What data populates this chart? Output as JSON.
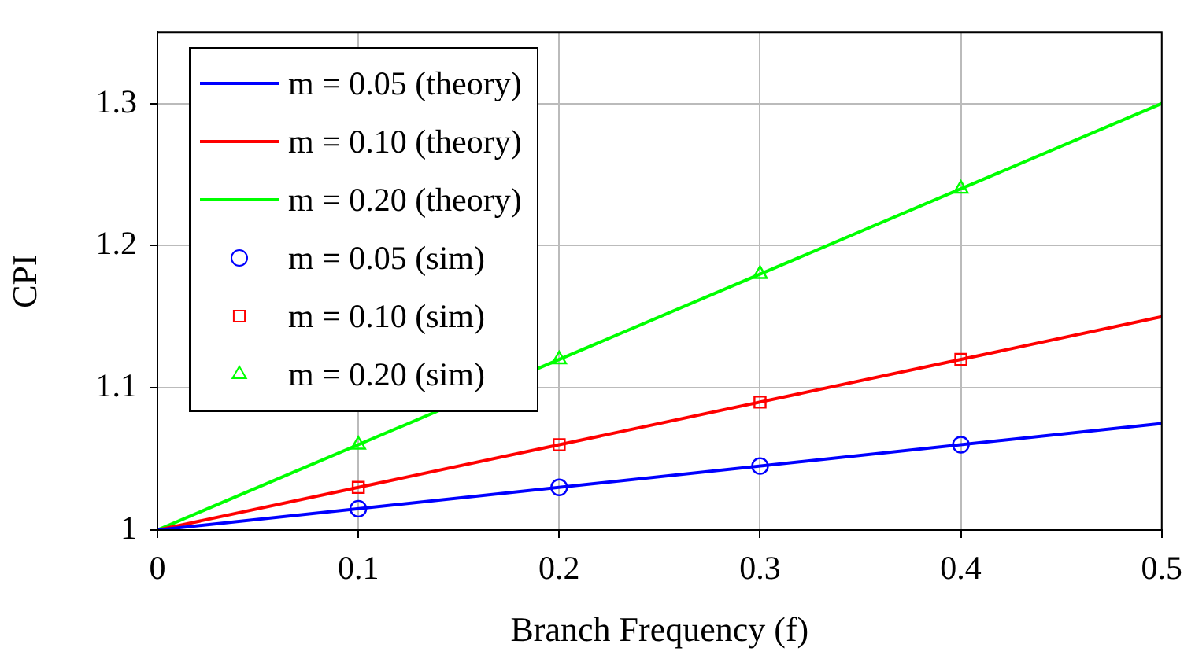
{
  "chart_data": {
    "type": "line",
    "xlabel": "Branch Frequency (f)",
    "ylabel": "CPI",
    "xlim": [
      0,
      0.5
    ],
    "ylim": [
      1,
      1.35
    ],
    "xticks": [
      0,
      0.1,
      0.2,
      0.3,
      0.4,
      0.5
    ],
    "yticks": [
      1,
      1.1,
      1.2,
      1.3
    ],
    "grid": true,
    "legend": "top left",
    "series": [
      {
        "name": "m = 0.05 (theory)",
        "color": "#0000ff",
        "x": [
          0,
          0.5
        ],
        "values": [
          1,
          1.075
        ],
        "marker": "none"
      },
      {
        "name": "m = 0.10 (theory)",
        "color": "#ff0000",
        "x": [
          0,
          0.5
        ],
        "values": [
          1,
          1.15
        ],
        "marker": "none"
      },
      {
        "name": "m = 0.20 (theory)",
        "color": "#00ff00",
        "x": [
          0,
          0.5
        ],
        "values": [
          1,
          1.3
        ],
        "marker": "none"
      },
      {
        "name": "m = 0.05 (sim)",
        "type": "scatter",
        "color": "#0000ff",
        "x": [
          0.1,
          0.2,
          0.3,
          0.4
        ],
        "values": [
          1.015,
          1.03,
          1.045,
          1.06
        ],
        "marker": "circle"
      },
      {
        "name": "m = 0.10 (sim)",
        "type": "scatter",
        "color": "#ff0000",
        "x": [
          0.1,
          0.2,
          0.3,
          0.4
        ],
        "values": [
          1.03,
          1.06,
          1.09,
          1.12
        ],
        "marker": "square"
      },
      {
        "name": "m = 0.20 (sim)",
        "type": "scatter",
        "color": "#00ff00",
        "x": [
          0.1,
          0.2,
          0.3,
          0.4
        ],
        "values": [
          1.06,
          1.12,
          1.18,
          1.24
        ],
        "marker": "triangle"
      }
    ]
  }
}
